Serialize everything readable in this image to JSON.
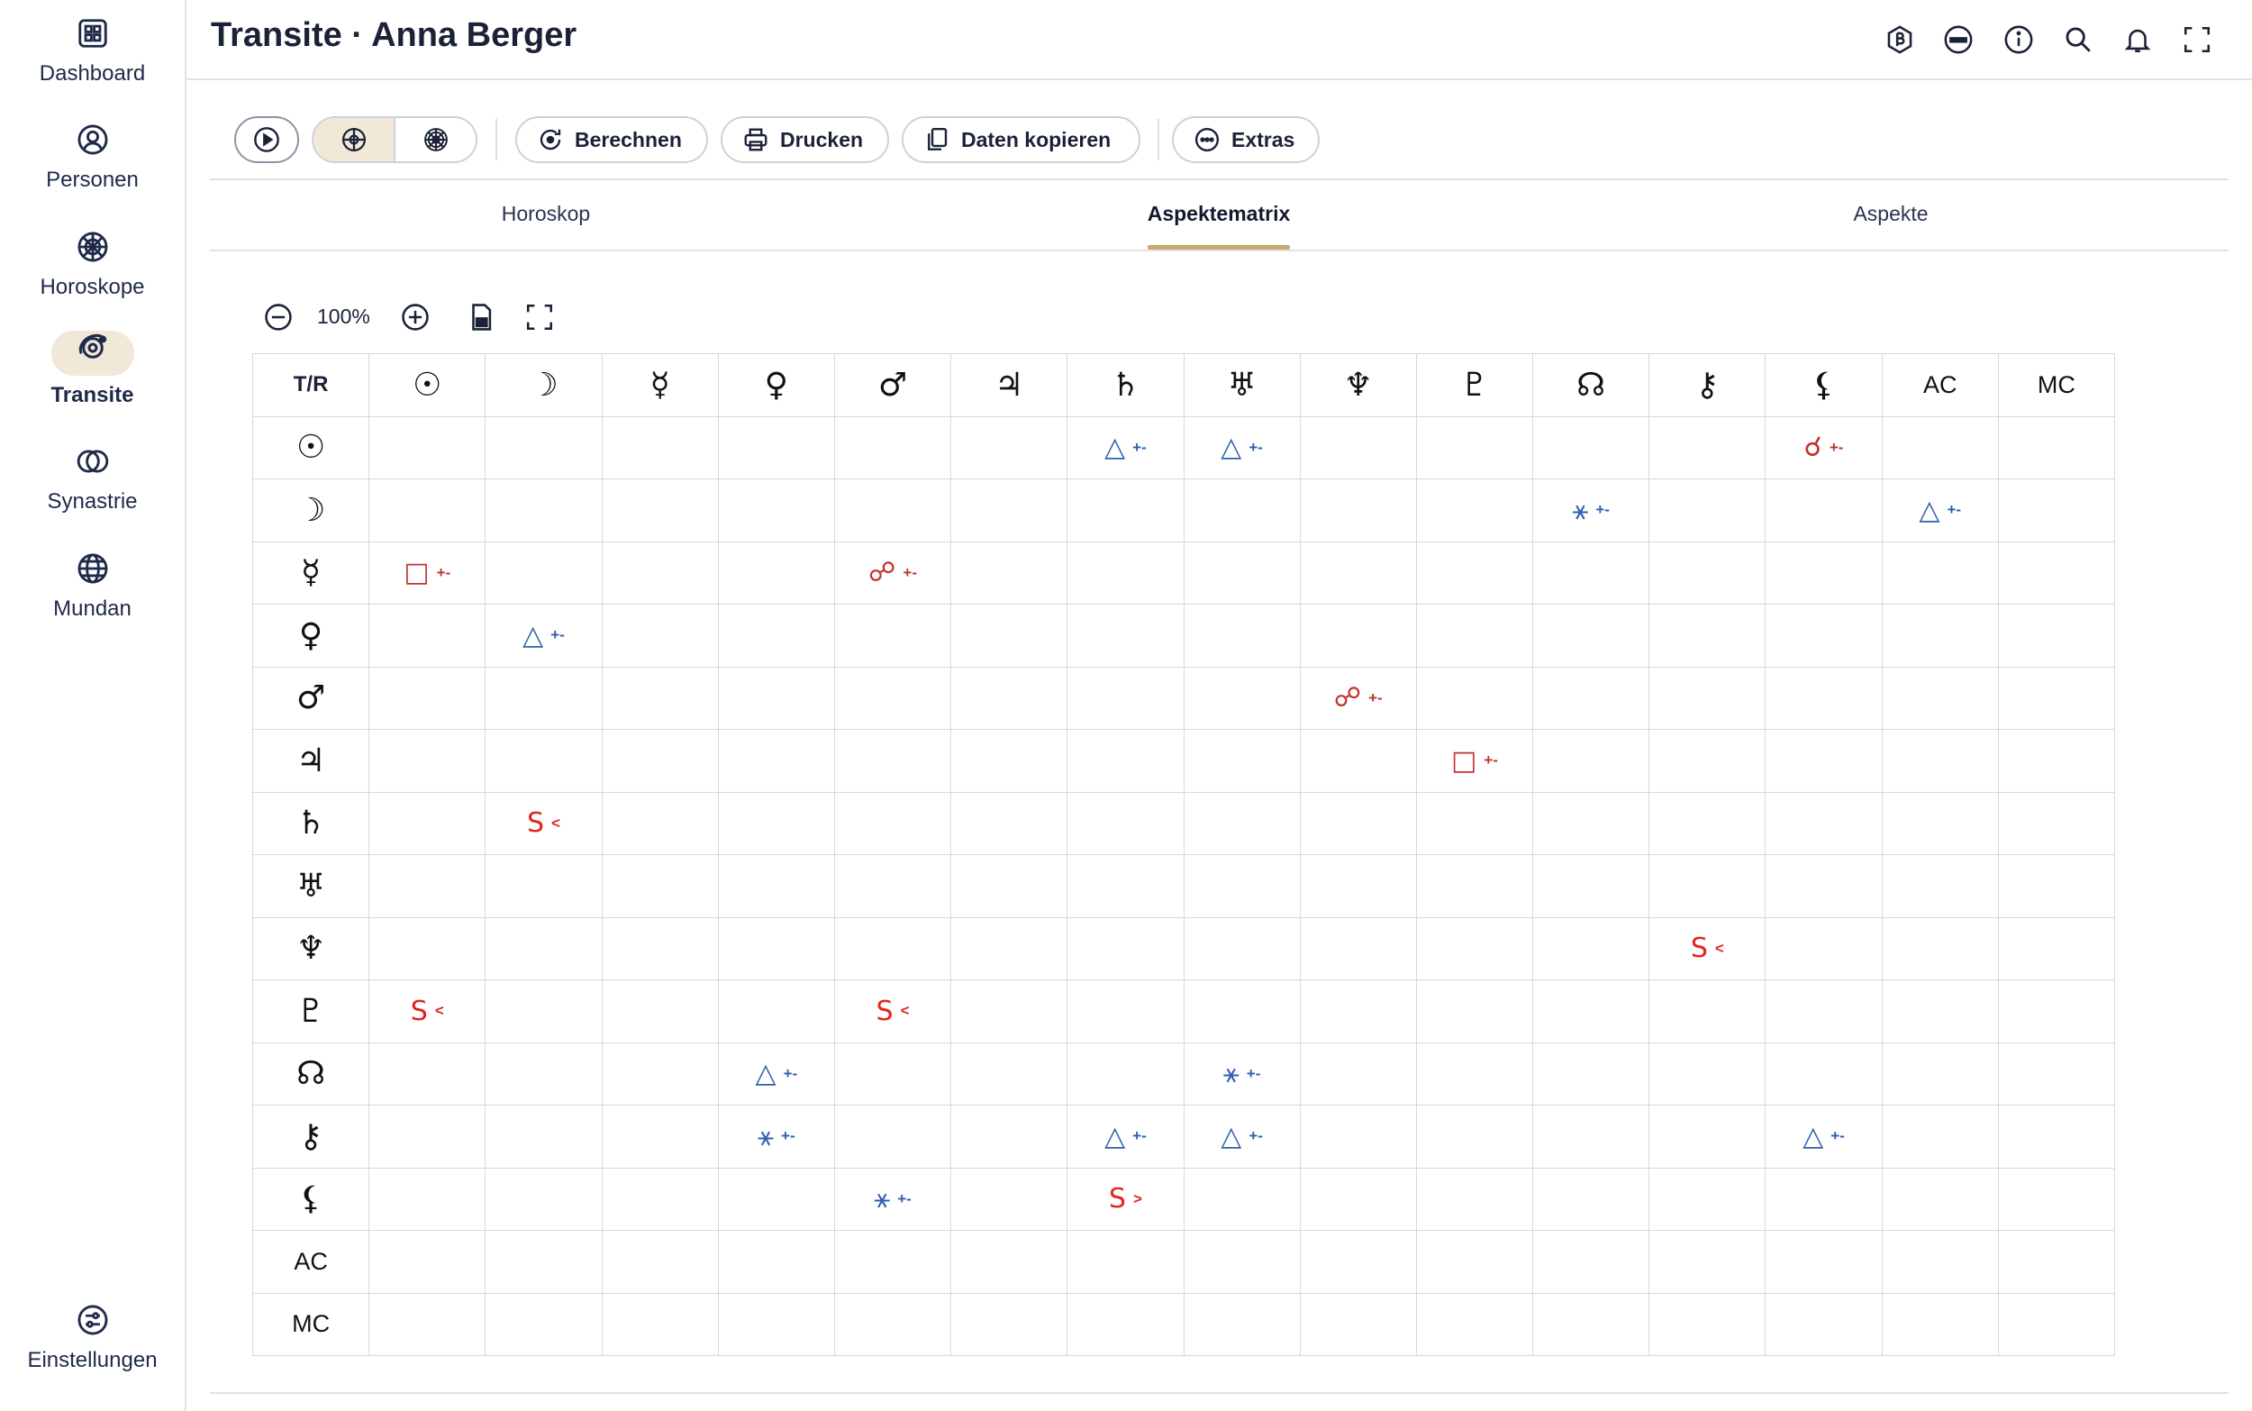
{
  "sidebar": {
    "items": [
      {
        "label": "Dashboard",
        "active": false
      },
      {
        "label": "Personen",
        "active": false
      },
      {
        "label": "Horoskope",
        "active": false
      },
      {
        "label": "Transite",
        "active": true
      },
      {
        "label": "Synastrie",
        "active": false
      },
      {
        "label": "Mundan",
        "active": false
      }
    ],
    "settings": "Einstellungen"
  },
  "header": {
    "title": "Transite · Anna Berger"
  },
  "toolbar": {
    "buttons": [
      "Berechnen",
      "Drucken",
      "Daten kopieren",
      "Extras"
    ]
  },
  "tabs": {
    "items": [
      "Horoskop",
      "Aspektematrix",
      "Aspekte"
    ],
    "active": 1
  },
  "zoom": {
    "level": "100%"
  },
  "matrix": {
    "corner": "T/R",
    "columns": [
      "☉",
      "☽",
      "☿",
      "♀",
      "♂",
      "♃",
      "♄",
      "♅",
      "♆",
      "♇",
      "☊",
      "⚷",
      "⚸",
      "AC",
      "MC"
    ],
    "rows": [
      "☉",
      "☽",
      "☿",
      "♀",
      "♂",
      "♃",
      "♄",
      "♅",
      "♆",
      "♇",
      "☊",
      "⚷",
      "⚸",
      "AC",
      "MC"
    ],
    "cells": [
      {
        "row": 0,
        "col": 6,
        "symbol": "△",
        "suffix": "+-",
        "color": "#2f5fae"
      },
      {
        "row": 0,
        "col": 7,
        "symbol": "△",
        "suffix": "+-",
        "color": "#2f5fae"
      },
      {
        "row": 0,
        "col": 12,
        "symbol": "☌",
        "suffix": "+-",
        "color": "#c0332e"
      },
      {
        "row": 1,
        "col": 10,
        "symbol": "⚹",
        "suffix": "+-",
        "color": "#2f5fae"
      },
      {
        "row": 1,
        "col": 13,
        "symbol": "△",
        "suffix": "+-",
        "color": "#2f5fae"
      },
      {
        "row": 2,
        "col": 0,
        "symbol": "□",
        "suffix": "+-",
        "color": "#c0332e"
      },
      {
        "row": 2,
        "col": 4,
        "symbol": "☍",
        "suffix": "+-",
        "color": "#c0332e"
      },
      {
        "row": 3,
        "col": 1,
        "symbol": "△",
        "suffix": "+-",
        "color": "#2f5fae"
      },
      {
        "row": 4,
        "col": 8,
        "symbol": "☍",
        "suffix": "+-",
        "color": "#c0332e"
      },
      {
        "row": 5,
        "col": 9,
        "symbol": "□",
        "suffix": "+-",
        "color": "#c0332e"
      },
      {
        "row": 6,
        "col": 1,
        "symbol": "S",
        "suffix": "<",
        "color": "#e0261e"
      },
      {
        "row": 8,
        "col": 11,
        "symbol": "S",
        "suffix": "<",
        "color": "#e0261e"
      },
      {
        "row": 9,
        "col": 0,
        "symbol": "S",
        "suffix": "<",
        "color": "#e0261e"
      },
      {
        "row": 9,
        "col": 4,
        "symbol": "S",
        "suffix": "<",
        "color": "#e0261e"
      },
      {
        "row": 10,
        "col": 3,
        "symbol": "△",
        "suffix": "+-",
        "color": "#2f5fae"
      },
      {
        "row": 10,
        "col": 7,
        "symbol": "⚹",
        "suffix": "+-",
        "color": "#2f5fae"
      },
      {
        "row": 11,
        "col": 3,
        "symbol": "⚹",
        "suffix": "+-",
        "color": "#2f5fae"
      },
      {
        "row": 11,
        "col": 6,
        "symbol": "△",
        "suffix": "+-",
        "color": "#2f5fae"
      },
      {
        "row": 11,
        "col": 7,
        "symbol": "△",
        "suffix": "+-",
        "color": "#2f5fae"
      },
      {
        "row": 11,
        "col": 12,
        "symbol": "△",
        "suffix": "+-",
        "color": "#2f5fae"
      },
      {
        "row": 12,
        "col": 4,
        "symbol": "⚹",
        "suffix": "+-",
        "color": "#2f5fae"
      },
      {
        "row": 12,
        "col": 6,
        "symbol": "S",
        "suffix": ">",
        "color": "#e0261e"
      }
    ]
  }
}
